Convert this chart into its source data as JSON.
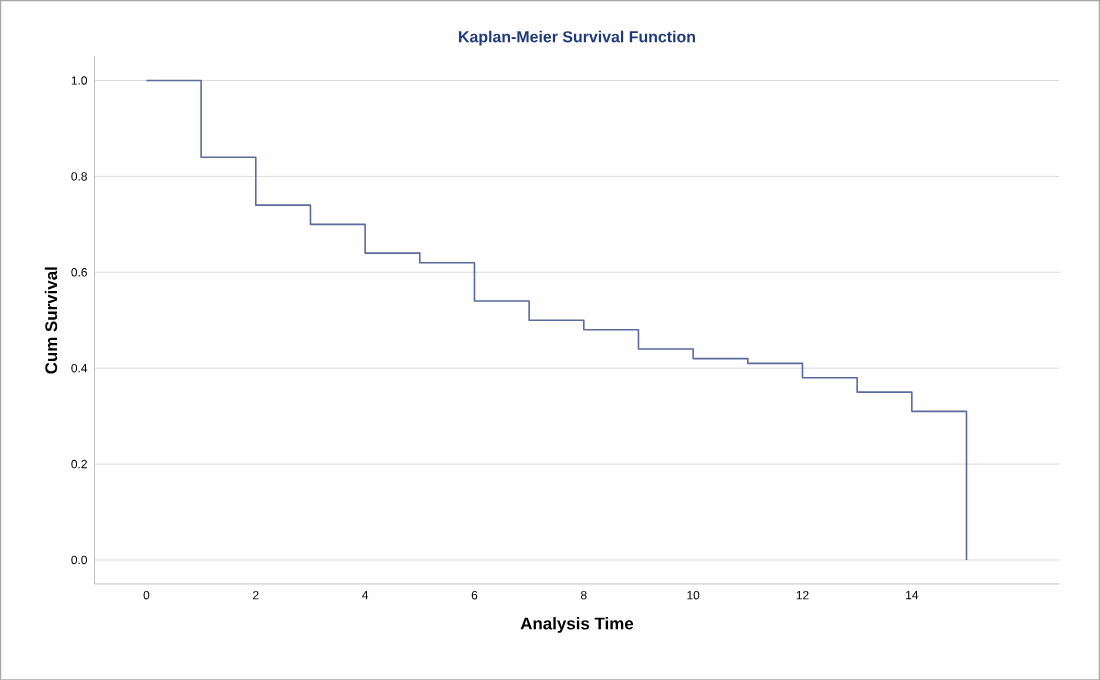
{
  "chart_data": {
    "type": "step",
    "title": "Kaplan-Meier Survival Function",
    "xlabel": "Analysis Time",
    "ylabel": "Cum Survival",
    "x": [
      0,
      1,
      2,
      3,
      4,
      5,
      6,
      7,
      8,
      9,
      10,
      11,
      12,
      13,
      14,
      15
    ],
    "values": [
      1.0,
      0.84,
      0.74,
      0.7,
      0.64,
      0.62,
      0.54,
      0.5,
      0.48,
      0.44,
      0.42,
      0.41,
      0.38,
      0.35,
      0.31,
      0.0
    ],
    "color": "#5a6a9c",
    "xlim": [
      -0.95,
      16.7
    ],
    "ylim": [
      -0.05,
      1.05
    ],
    "xticks": [
      0,
      2,
      4,
      6,
      8,
      10,
      12,
      14
    ],
    "yticks": [
      {
        "value": 0,
        "label": "0.0"
      },
      {
        "value": 0.2,
        "label": "0.2"
      },
      {
        "value": 0.4,
        "label": "0.4"
      },
      {
        "value": 0.6,
        "label": "0.6"
      },
      {
        "value": 0.8,
        "label": "0.8"
      },
      {
        "value": 1.0,
        "label": "1.0"
      }
    ],
    "grid": "y"
  }
}
